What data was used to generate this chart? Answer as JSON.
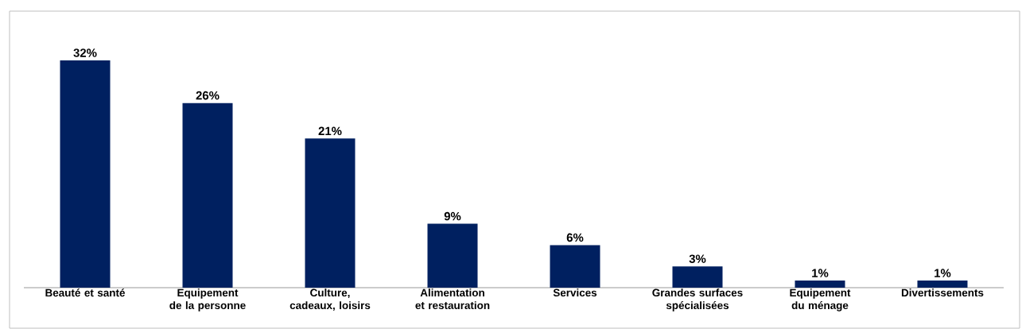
{
  "chart_data": {
    "type": "bar",
    "categories": [
      "Beauté et santé",
      "Equipement de la personne",
      "Culture, cadeaux, loisirs",
      "Alimentation et restauration",
      "Services",
      "Grandes surfaces spécialisées",
      "Equipement du ménage",
      "Divertissements"
    ],
    "values": [
      32,
      26,
      21,
      9,
      6,
      3,
      1,
      1
    ],
    "value_labels": [
      "32%",
      "26%",
      "21%",
      "9%",
      "6%",
      "3%",
      "1%",
      "1%"
    ],
    "color": "#002060"
  }
}
